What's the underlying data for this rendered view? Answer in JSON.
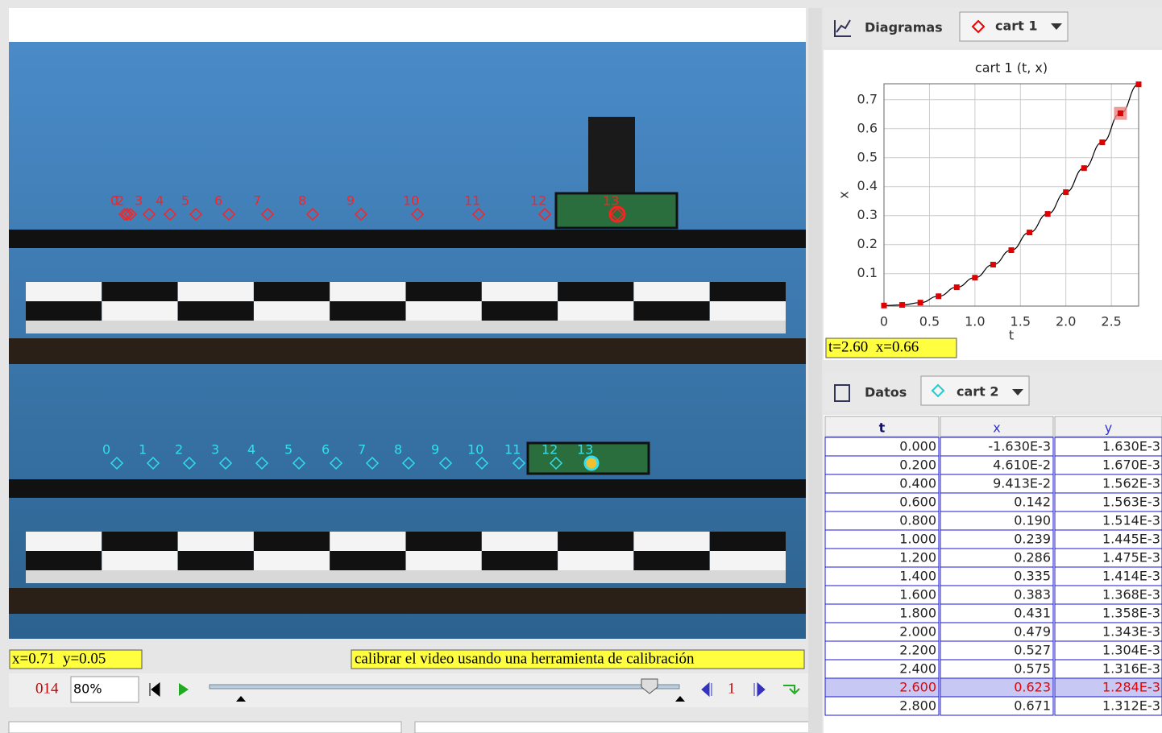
{
  "status": {
    "coords": "x=0.71  y=0.05",
    "hint": "calibrar el video usando una herramienta de calibración"
  },
  "video": {
    "cart1_marks": [
      "0",
      "1",
      "2",
      "3",
      "4",
      "5",
      "6",
      "7",
      "8",
      "9",
      "10",
      "11",
      "12",
      "13"
    ],
    "cart2_marks": [
      "0",
      "1",
      "2",
      "3",
      "4",
      "5",
      "6",
      "7",
      "8",
      "9",
      "10",
      "11",
      "12",
      "13"
    ]
  },
  "controls": {
    "frame": "014",
    "zoom": "80%",
    "step": "1"
  },
  "plot_panel": {
    "tab": "Diagramas",
    "track": "cart 1"
  },
  "plot": {
    "title": "cart 1 (t, x)",
    "xlabel": "t",
    "ylabel": "x",
    "readout": "t=2.60  x=0.66",
    "color": "#e00000",
    "x": [
      0,
      0.2,
      0.4,
      0.6,
      0.8,
      1.0,
      1.2,
      1.4,
      1.6,
      1.8,
      2.0,
      2.2,
      2.4,
      2.6,
      2.8
    ],
    "values": [
      -0.01,
      -0.008,
      0.0,
      0.022,
      0.053,
      0.086,
      0.131,
      0.181,
      0.242,
      0.306,
      0.381,
      0.464,
      0.553,
      0.653,
      0.753
    ],
    "xlim": [
      0,
      2.8
    ],
    "ylim": [
      -0.012,
      0.755
    ],
    "xticks": [
      0,
      0.5,
      {
        "value": 1,
        "label": "1.0"
      },
      1.5,
      {
        "value": 2,
        "label": "2.0"
      },
      2.5
    ],
    "yticks": [
      0.1,
      0.2,
      0.3,
      0.4,
      0.5,
      0.6,
      0.7
    ],
    "grid": true
  },
  "table_panel": {
    "tab": "Datos",
    "track": "cart 2"
  },
  "table": {
    "columns": [
      "t",
      "x",
      "y"
    ],
    "rows": [
      [
        "0.000",
        "-1.630E-3",
        "1.630E-3"
      ],
      [
        "0.200",
        "4.610E-2",
        "1.670E-3"
      ],
      [
        "0.400",
        "9.413E-2",
        "1.562E-3"
      ],
      [
        "0.600",
        "0.142",
        "1.563E-3"
      ],
      [
        "0.800",
        "0.190",
        "1.514E-3"
      ],
      [
        "1.000",
        "0.239",
        "1.445E-3"
      ],
      [
        "1.200",
        "0.286",
        "1.475E-3"
      ],
      [
        "1.400",
        "0.335",
        "1.414E-3"
      ],
      [
        "1.600",
        "0.383",
        "1.368E-3"
      ],
      [
        "1.800",
        "0.431",
        "1.358E-3"
      ],
      [
        "2.000",
        "0.479",
        "1.343E-3"
      ],
      [
        "2.200",
        "0.527",
        "1.304E-3"
      ],
      [
        "2.400",
        "0.575",
        "1.316E-3"
      ],
      [
        "2.600",
        "0.623",
        "1.284E-3"
      ],
      [
        "2.800",
        "0.671",
        "1.312E-3"
      ]
    ]
  }
}
